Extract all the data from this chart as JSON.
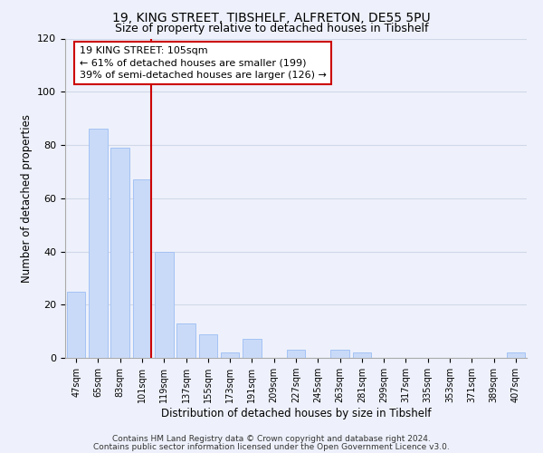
{
  "title1": "19, KING STREET, TIBSHELF, ALFRETON, DE55 5PU",
  "title2": "Size of property relative to detached houses in Tibshelf",
  "xlabel": "Distribution of detached houses by size in Tibshelf",
  "ylabel": "Number of detached properties",
  "bar_labels": [
    "47sqm",
    "65sqm",
    "83sqm",
    "101sqm",
    "119sqm",
    "137sqm",
    "155sqm",
    "173sqm",
    "191sqm",
    "209sqm",
    "227sqm",
    "245sqm",
    "263sqm",
    "281sqm",
    "299sqm",
    "317sqm",
    "335sqm",
    "353sqm",
    "371sqm",
    "389sqm",
    "407sqm"
  ],
  "bar_values": [
    25,
    86,
    79,
    67,
    40,
    13,
    9,
    2,
    7,
    0,
    3,
    0,
    3,
    2,
    0,
    0,
    0,
    0,
    0,
    0,
    2
  ],
  "bar_color": "#c9daf8",
  "bar_edge_color": "#a4c2f4",
  "vline_color": "#cc0000",
  "annotation_text": "19 KING STREET: 105sqm\n← 61% of detached houses are smaller (199)\n39% of semi-detached houses are larger (126) →",
  "annotation_box_edge": "#cc0000",
  "annotation_box_bg": "white",
  "ylim": [
    0,
    120
  ],
  "yticks": [
    0,
    20,
    40,
    60,
    80,
    100,
    120
  ],
  "footnote1": "Contains HM Land Registry data © Crown copyright and database right 2024.",
  "footnote2": "Contains public sector information licensed under the Open Government Licence v3.0.",
  "grid_color": "#d0d8e8",
  "background_color": "#eef1fb"
}
